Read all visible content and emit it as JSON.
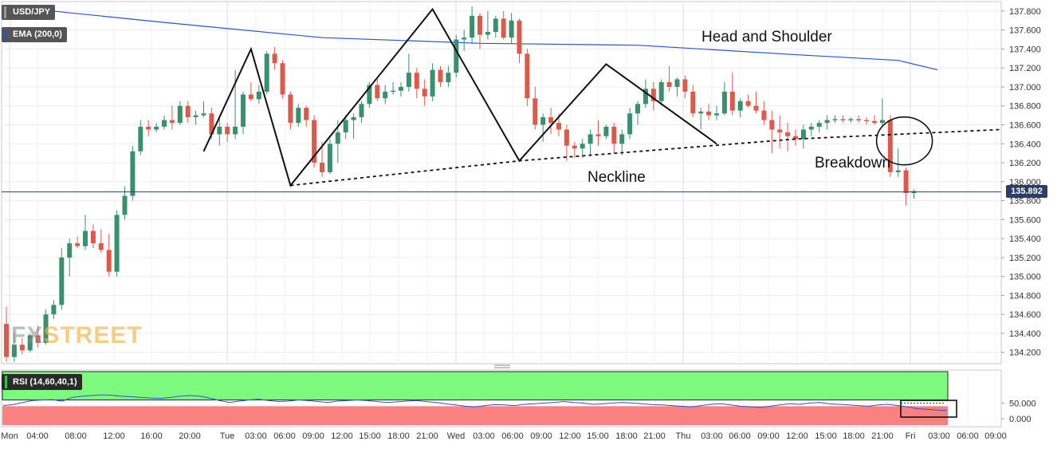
{
  "header": {
    "symbol": "USD/JPY",
    "ema_label": "EMA (200,0)",
    "ema_color": "#2b4fd9",
    "rsi_label": "RSI (14,60,40,1)",
    "current_price": "135.892"
  },
  "watermark": {
    "part1": "FX",
    "part2": "STREET"
  },
  "annotations": {
    "pattern": "Head and Shoulder",
    "neckline": "Neckline",
    "breakdown": "Breakdown"
  },
  "colors": {
    "bull": "#3a8f6e",
    "bear": "#dd5a4a",
    "rsi_upper_zone": "#7dfa7d",
    "rsi_lower_zone": "#fb8080",
    "rsi_line": "#2b4fd9",
    "price_line": "#2b3f66"
  },
  "chart_data": {
    "type": "candlestick",
    "price_axis": {
      "range": [
        134.08,
        137.9
      ],
      "ticks": [
        "134.200",
        "134.400",
        "134.600",
        "134.800",
        "135.000",
        "135.200",
        "135.400",
        "135.600",
        "135.800",
        "136.000",
        "136.200",
        "136.400",
        "136.600",
        "136.800",
        "137.000",
        "137.200",
        "137.400",
        "137.600",
        "137.800"
      ]
    },
    "time_axis": {
      "labels": [
        "Mon",
        "04:00",
        "08:00",
        "12:00",
        "16:00",
        "20:00",
        "Tue",
        "03:00",
        "06:00",
        "09:00",
        "12:00",
        "15:00",
        "18:00",
        "21:00",
        "Wed",
        "03:00",
        "06:00",
        "09:00",
        "12:00",
        "15:00",
        "18:00",
        "21:00",
        "Thu",
        "03:00",
        "06:00",
        "09:00",
        "12:00",
        "15:00",
        "18:00",
        "21:00",
        "Fri",
        "03:00",
        "06:00",
        "09:00"
      ],
      "label_positions": [
        12,
        47,
        95,
        143,
        190,
        238,
        285,
        321,
        357,
        393,
        429,
        464,
        500,
        536,
        572,
        607,
        643,
        679,
        715,
        750,
        786,
        821,
        857,
        893,
        928,
        964,
        1000,
        1036,
        1071,
        1107,
        1142,
        1178,
        1214,
        1249
      ]
    },
    "candles": [
      [
        134.5,
        134.68,
        134.1,
        134.15
      ],
      [
        134.15,
        134.4,
        134.1,
        134.28
      ],
      [
        134.28,
        134.35,
        134.18,
        134.22
      ],
      [
        134.22,
        134.4,
        134.2,
        134.38
      ],
      [
        134.38,
        134.48,
        134.25,
        134.3
      ],
      [
        134.3,
        134.65,
        134.28,
        134.6
      ],
      [
        134.6,
        134.75,
        134.55,
        134.7
      ],
      [
        134.7,
        135.3,
        134.65,
        135.2
      ],
      [
        135.2,
        135.4,
        135.0,
        135.35
      ],
      [
        135.35,
        135.42,
        135.3,
        135.32
      ],
      [
        135.32,
        135.65,
        135.28,
        135.48
      ],
      [
        135.48,
        135.55,
        135.3,
        135.35
      ],
      [
        135.35,
        135.5,
        135.25,
        135.28
      ],
      [
        135.28,
        135.45,
        135.0,
        135.05
      ],
      [
        135.05,
        135.7,
        135.0,
        135.65
      ],
      [
        135.65,
        135.95,
        135.6,
        135.85
      ],
      [
        135.85,
        136.38,
        135.8,
        136.32
      ],
      [
        136.32,
        136.65,
        136.28,
        136.58
      ],
      [
        136.58,
        136.65,
        136.48,
        136.55
      ],
      [
        136.55,
        136.62,
        136.52,
        136.58
      ],
      [
        136.58,
        136.7,
        136.55,
        136.65
      ],
      [
        136.65,
        136.8,
        136.55,
        136.62
      ],
      [
        136.62,
        136.85,
        136.6,
        136.8
      ],
      [
        136.8,
        136.85,
        136.62,
        136.68
      ],
      [
        136.68,
        136.75,
        136.6,
        136.7
      ],
      [
        136.7,
        136.85,
        136.68,
        136.72
      ],
      [
        136.72,
        136.78,
        136.45,
        136.5
      ],
      [
        136.5,
        136.7,
        136.38,
        136.58
      ],
      [
        136.58,
        136.62,
        136.42,
        136.5
      ],
      [
        136.5,
        137.18,
        136.45,
        136.58
      ],
      [
        136.58,
        136.95,
        136.5,
        136.92
      ],
      [
        136.92,
        137.05,
        136.85,
        136.87
      ],
      [
        136.87,
        137.02,
        136.82,
        136.95
      ],
      [
        136.95,
        137.38,
        136.92,
        137.35
      ],
      [
        137.35,
        137.42,
        137.18,
        137.25
      ],
      [
        137.25,
        137.28,
        136.88,
        136.92
      ],
      [
        136.92,
        136.95,
        136.55,
        136.62
      ],
      [
        136.62,
        136.82,
        136.58,
        136.78
      ],
      [
        136.78,
        136.8,
        136.58,
        136.65
      ],
      [
        136.65,
        136.7,
        136.15,
        136.2
      ],
      [
        136.2,
        136.42,
        136.05,
        136.1
      ],
      [
        136.1,
        136.45,
        136.08,
        136.4
      ],
      [
        136.4,
        136.65,
        136.2,
        136.52
      ],
      [
        136.52,
        136.7,
        136.45,
        136.65
      ],
      [
        136.65,
        136.72,
        136.45,
        136.68
      ],
      [
        136.68,
        136.85,
        136.62,
        136.82
      ],
      [
        136.82,
        137.05,
        136.78,
        137.02
      ],
      [
        137.02,
        137.08,
        136.85,
        136.88
      ],
      [
        136.88,
        137.02,
        136.82,
        136.95
      ],
      [
        136.95,
        137.05,
        136.92,
        136.96
      ],
      [
        136.96,
        137.05,
        136.9,
        137.0
      ],
      [
        137.0,
        137.35,
        136.95,
        137.15
      ],
      [
        137.15,
        137.2,
        136.88,
        136.98
      ],
      [
        136.98,
        137.08,
        136.8,
        136.9
      ],
      [
        136.9,
        137.25,
        136.85,
        137.18
      ],
      [
        137.18,
        137.22,
        137.0,
        137.05
      ],
      [
        137.05,
        137.22,
        137.0,
        137.15
      ],
      [
        137.15,
        137.55,
        137.1,
        137.5
      ],
      [
        137.5,
        137.6,
        137.38,
        137.52
      ],
      [
        137.52,
        137.85,
        137.45,
        137.75
      ],
      [
        137.75,
        137.78,
        137.4,
        137.55
      ],
      [
        137.55,
        137.8,
        137.5,
        137.58
      ],
      [
        137.58,
        137.75,
        137.52,
        137.72
      ],
      [
        137.72,
        137.8,
        137.5,
        137.52
      ],
      [
        137.52,
        137.78,
        137.45,
        137.7
      ],
      [
        137.7,
        137.72,
        137.25,
        137.35
      ],
      [
        137.35,
        137.4,
        136.8,
        136.88
      ],
      [
        136.88,
        137.0,
        136.55,
        136.6
      ],
      [
        136.6,
        136.72,
        136.42,
        136.68
      ],
      [
        136.68,
        136.78,
        136.5,
        136.62
      ],
      [
        136.62,
        136.72,
        136.48,
        136.55
      ],
      [
        136.55,
        136.6,
        136.22,
        136.38
      ],
      [
        136.38,
        136.42,
        136.25,
        136.35
      ],
      [
        136.35,
        136.45,
        136.25,
        136.4
      ],
      [
        136.4,
        136.55,
        136.28,
        136.5
      ],
      [
        136.5,
        136.65,
        136.38,
        136.48
      ],
      [
        136.48,
        136.6,
        136.45,
        136.58
      ],
      [
        136.58,
        136.62,
        136.3,
        136.4
      ],
      [
        136.4,
        136.55,
        136.28,
        136.5
      ],
      [
        136.5,
        136.78,
        136.45,
        136.72
      ],
      [
        136.72,
        136.85,
        136.6,
        136.82
      ],
      [
        136.82,
        137.08,
        136.78,
        136.98
      ],
      [
        136.98,
        137.05,
        136.75,
        136.85
      ],
      [
        136.85,
        137.08,
        136.8,
        137.05
      ],
      [
        137.05,
        137.22,
        136.95,
        137.0
      ],
      [
        137.0,
        137.1,
        136.9,
        137.08
      ],
      [
        137.08,
        137.12,
        136.88,
        136.95
      ],
      [
        136.95,
        137.02,
        136.68,
        136.72
      ],
      [
        136.72,
        136.78,
        136.55,
        136.74
      ],
      [
        136.74,
        136.82,
        136.65,
        136.7
      ],
      [
        136.7,
        136.8,
        136.65,
        136.72
      ],
      [
        136.72,
        137.05,
        136.7,
        136.95
      ],
      [
        136.95,
        137.15,
        136.7,
        136.75
      ],
      [
        136.75,
        136.88,
        136.68,
        136.85
      ],
      [
        136.85,
        136.92,
        136.78,
        136.8
      ],
      [
        136.8,
        136.95,
        136.72,
        136.75
      ],
      [
        136.75,
        136.85,
        136.6,
        136.65
      ],
      [
        136.65,
        136.75,
        136.3,
        136.55
      ],
      [
        136.55,
        136.7,
        136.35,
        136.52
      ],
      [
        136.52,
        136.62,
        136.32,
        136.48
      ],
      [
        136.48,
        136.55,
        136.38,
        136.45
      ],
      [
        136.45,
        136.6,
        136.35,
        136.55
      ],
      [
        136.55,
        136.62,
        136.48,
        136.58
      ],
      [
        136.58,
        136.65,
        136.52,
        136.62
      ],
      [
        136.62,
        136.7,
        136.55,
        136.65
      ],
      [
        136.65,
        136.7,
        136.62,
        136.66
      ],
      [
        136.66,
        136.7,
        136.62,
        136.65
      ],
      [
        136.65,
        136.68,
        136.62,
        136.66
      ],
      [
        136.66,
        136.7,
        136.62,
        136.65
      ],
      [
        136.65,
        136.68,
        136.6,
        136.64
      ],
      [
        136.64,
        136.7,
        136.6,
        136.62
      ],
      [
        136.62,
        136.88,
        136.58,
        136.65
      ],
      [
        136.65,
        136.7,
        136.05,
        136.1
      ],
      [
        136.1,
        136.35,
        136.05,
        136.12
      ],
      [
        136.12,
        136.15,
        135.75,
        135.88
      ],
      [
        135.88,
        135.92,
        135.82,
        135.9
      ]
    ],
    "ema_200": {
      "name": "EMA (200,0)",
      "points": [
        [
          0,
          137.85
        ],
        [
          20,
          137.68
        ],
        [
          40,
          137.52
        ],
        [
          60,
          137.46
        ],
        [
          80,
          137.44
        ],
        [
          100,
          137.34
        ],
        [
          113,
          137.28
        ],
        [
          118,
          137.18
        ]
      ]
    },
    "pattern_lines": {
      "shoulders_head": [
        [
          25,
          136.32
        ],
        [
          31,
          137.4
        ],
        [
          36,
          135.96
        ],
        [
          54,
          137.82
        ],
        [
          65,
          136.22
        ],
        [
          76,
          137.24
        ],
        [
          90,
          136.4
        ]
      ],
      "neckline": [
        [
          36,
          135.96
        ],
        [
          65,
          136.22
        ],
        [
          100,
          136.45
        ],
        [
          126,
          136.55
        ]
      ],
      "breakdown_circle": {
        "x": 114,
        "y": 136.43
      }
    },
    "rsi": {
      "label": "RSI (14,60,40,1)",
      "ticks": [
        "50.000",
        "0.000"
      ],
      "range": [
        -25,
        155
      ],
      "upper_zone": [
        60,
        150
      ],
      "lower_zone": [
        -20,
        40
      ],
      "values": [
        42,
        45,
        52,
        58,
        60,
        61,
        56,
        68,
        72,
        74,
        76,
        75,
        72,
        70,
        68,
        66,
        65,
        68,
        72,
        74,
        72,
        66,
        58,
        52,
        56,
        60,
        62,
        58,
        55,
        56,
        60,
        58,
        55,
        52,
        56,
        58,
        60,
        58,
        55,
        52,
        54,
        56,
        58,
        55,
        52,
        48,
        44,
        40,
        38,
        42,
        45,
        44,
        42,
        46,
        48,
        50,
        52,
        55,
        52,
        50,
        46,
        48,
        50,
        52,
        50,
        48,
        45,
        44,
        42,
        40,
        38,
        42,
        46,
        48,
        44,
        40,
        38,
        36,
        40,
        44,
        48,
        46,
        50,
        52,
        48,
        46,
        44,
        42,
        40,
        44,
        46,
        42,
        38,
        32,
        30,
        28,
        26
      ],
      "current_window": {
        "x_start": 110,
        "x_end": 118,
        "level": 22
      }
    }
  }
}
